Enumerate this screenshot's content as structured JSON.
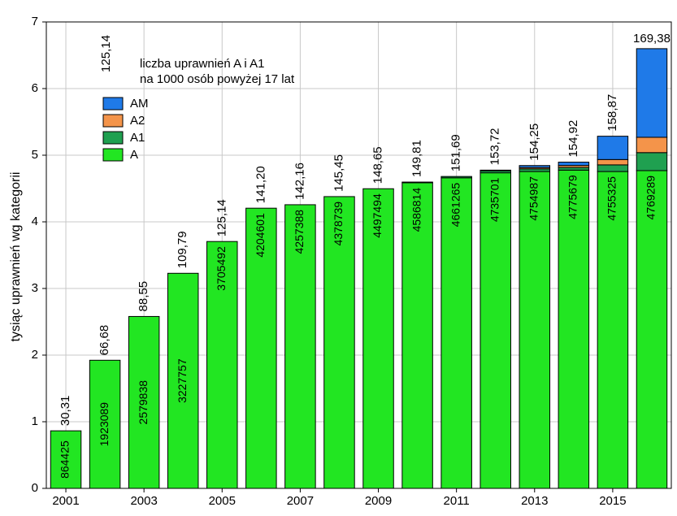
{
  "chart_data": {
    "type": "bar",
    "stacked": true,
    "title": "",
    "annotation_lines": [
      "liczba uprawnień A i A1",
      "na 1000 osób powyżej 17 lat"
    ],
    "annotation_value": "125,14",
    "xlabel": "",
    "ylabel": "tysiąc uprawnień wg kategorii",
    "ylim": [
      0,
      7
    ],
    "yticks": [
      0,
      1,
      2,
      3,
      4,
      5,
      6,
      7
    ],
    "grid": true,
    "legend_position": "top-left",
    "categories": [
      "2001",
      "2002",
      "2003",
      "2004",
      "2005",
      "2006",
      "2007",
      "2008",
      "2009",
      "2010",
      "2011",
      "2012",
      "2013",
      "2014",
      "2015",
      "2016"
    ],
    "xtick_labels": [
      "2001",
      "",
      "2003",
      "",
      "2005",
      "",
      "2007",
      "",
      "2009",
      "",
      "2011",
      "",
      "2013",
      "",
      "2015",
      ""
    ],
    "series": [
      {
        "name": "A",
        "color": "#22e622",
        "values": [
          0.864,
          1.923,
          2.58,
          3.228,
          3.705,
          4.205,
          4.257,
          4.379,
          4.497,
          4.587,
          4.661,
          4.736,
          4.755,
          4.776,
          4.755,
          4.769
        ]
      },
      {
        "name": "A1",
        "color": "#1fa050",
        "values": [
          0,
          0,
          0,
          0,
          0,
          0,
          0,
          0,
          0,
          0.01,
          0.02,
          0.03,
          0.04,
          0.04,
          0.1,
          0.27
        ]
      },
      {
        "name": "A2",
        "color": "#f4944a",
        "values": [
          0,
          0,
          0,
          0,
          0,
          0,
          0,
          0,
          0,
          0,
          0,
          0,
          0.02,
          0.03,
          0.08,
          0.23
        ]
      },
      {
        "name": "AM",
        "color": "#1f7ae8",
        "values": [
          0,
          0,
          0,
          0,
          0,
          0,
          0,
          0,
          0,
          0,
          0,
          0.01,
          0.03,
          0.05,
          0.35,
          1.33
        ]
      }
    ],
    "legend_order": [
      "AM",
      "A2",
      "A1",
      "A"
    ],
    "bar_top_labels": [
      "30,31",
      "66,68",
      "88,55",
      "109,79",
      "125,14",
      "141,20",
      "142,16",
      "145,45",
      "148,65",
      "149,81",
      "151,69",
      "153,72",
      "154,25",
      "154,92",
      "158,87",
      "169,38"
    ],
    "bar_inside_labels": [
      "864425",
      "1923089",
      "2579838",
      "3227757",
      "3705492",
      "4204601",
      "4257388",
      "4378739",
      "4497494",
      "4586814",
      "4661265",
      "4735701",
      "4754987",
      "4775679",
      "4755325",
      "4769289"
    ]
  }
}
